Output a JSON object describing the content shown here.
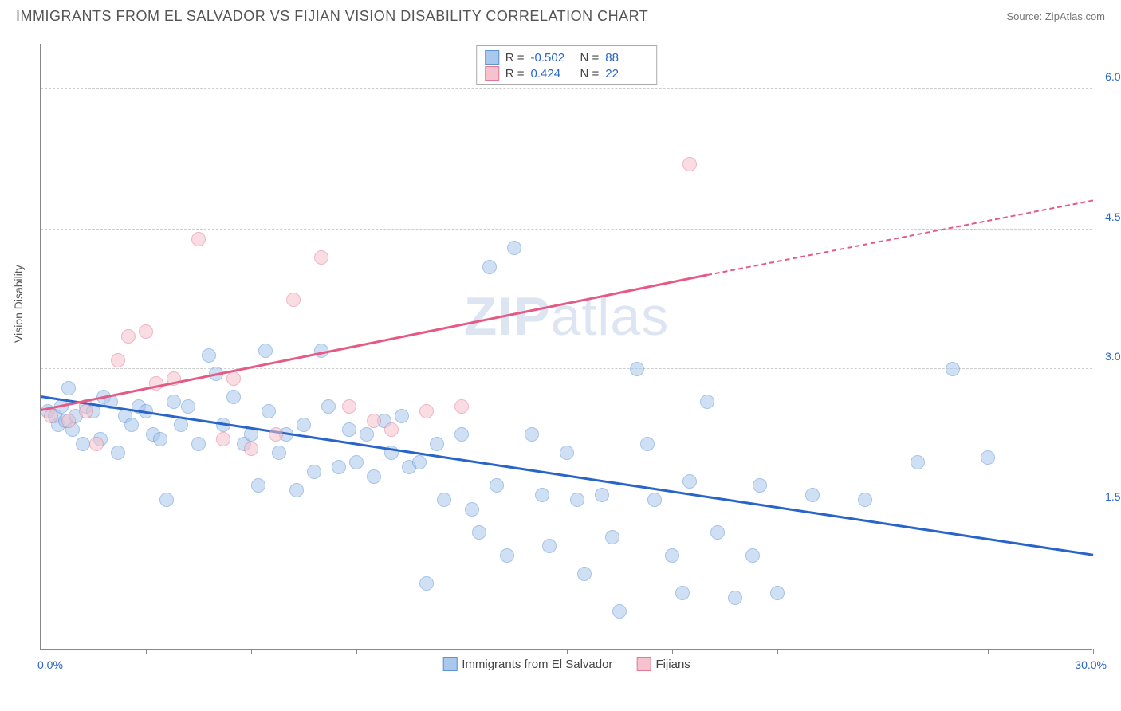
{
  "title": "IMMIGRANTS FROM EL SALVADOR VS FIJIAN VISION DISABILITY CORRELATION CHART",
  "source": "Source: ZipAtlas.com",
  "watermark_left": "ZIP",
  "watermark_right": "atlas",
  "y_axis_label": "Vision Disability",
  "chart": {
    "type": "scatter",
    "xlim": [
      0,
      30
    ],
    "ylim": [
      0,
      6.5
    ],
    "x_range_labels": {
      "min": "0.0%",
      "max": "30.0%"
    },
    "y_ticks": [
      {
        "v": 1.5,
        "label": "1.5%"
      },
      {
        "v": 3.0,
        "label": "3.0%"
      },
      {
        "v": 4.5,
        "label": "4.5%"
      },
      {
        "v": 6.0,
        "label": "6.0%"
      }
    ],
    "x_tick_positions": [
      0,
      3,
      6,
      9,
      12,
      15,
      18,
      21,
      24,
      27,
      30
    ],
    "background_color": "#ffffff",
    "grid_color": "#cccccc",
    "point_radius": 9,
    "point_opacity": 0.55,
    "series": [
      {
        "name": "Immigrants from El Salvador",
        "color_fill": "#a9c8ec",
        "color_stroke": "#5d93d4",
        "trend_color": "#2965c8",
        "trend": {
          "x1": 0,
          "y1": 2.7,
          "x2": 30,
          "y2": 1.0
        },
        "R": "-0.502",
        "N": "88",
        "points": [
          [
            0.2,
            2.55
          ],
          [
            0.4,
            2.5
          ],
          [
            0.5,
            2.4
          ],
          [
            0.6,
            2.6
          ],
          [
            0.7,
            2.45
          ],
          [
            0.8,
            2.8
          ],
          [
            0.9,
            2.35
          ],
          [
            1.0,
            2.5
          ],
          [
            1.2,
            2.2
          ],
          [
            1.3,
            2.6
          ],
          [
            1.5,
            2.55
          ],
          [
            1.7,
            2.25
          ],
          [
            1.8,
            2.7
          ],
          [
            2.0,
            2.65
          ],
          [
            2.2,
            2.1
          ],
          [
            2.4,
            2.5
          ],
          [
            2.6,
            2.4
          ],
          [
            2.8,
            2.6
          ],
          [
            3.0,
            2.55
          ],
          [
            3.2,
            2.3
          ],
          [
            3.4,
            2.25
          ],
          [
            3.6,
            1.6
          ],
          [
            3.8,
            2.65
          ],
          [
            4.0,
            2.4
          ],
          [
            4.2,
            2.6
          ],
          [
            4.5,
            2.2
          ],
          [
            4.8,
            3.15
          ],
          [
            5.0,
            2.95
          ],
          [
            5.2,
            2.4
          ],
          [
            5.5,
            2.7
          ],
          [
            5.8,
            2.2
          ],
          [
            6.0,
            2.3
          ],
          [
            6.2,
            1.75
          ],
          [
            6.5,
            2.55
          ],
          [
            6.4,
            3.2
          ],
          [
            6.8,
            2.1
          ],
          [
            7.0,
            2.3
          ],
          [
            7.3,
            1.7
          ],
          [
            7.5,
            2.4
          ],
          [
            7.8,
            1.9
          ],
          [
            8.0,
            3.2
          ],
          [
            8.2,
            2.6
          ],
          [
            8.5,
            1.95
          ],
          [
            8.8,
            2.35
          ],
          [
            9.0,
            2.0
          ],
          [
            9.3,
            2.3
          ],
          [
            9.5,
            1.85
          ],
          [
            9.8,
            2.45
          ],
          [
            10.0,
            2.1
          ],
          [
            10.3,
            2.5
          ],
          [
            10.5,
            1.95
          ],
          [
            10.8,
            2.0
          ],
          [
            11.0,
            0.7
          ],
          [
            11.3,
            2.2
          ],
          [
            11.5,
            1.6
          ],
          [
            12.0,
            2.3
          ],
          [
            12.3,
            1.5
          ],
          [
            12.5,
            1.25
          ],
          [
            12.8,
            4.1
          ],
          [
            13.0,
            1.75
          ],
          [
            13.3,
            1.0
          ],
          [
            13.5,
            4.3
          ],
          [
            14.0,
            2.3
          ],
          [
            14.3,
            1.65
          ],
          [
            14.5,
            1.1
          ],
          [
            15.0,
            2.1
          ],
          [
            15.3,
            1.6
          ],
          [
            15.5,
            0.8
          ],
          [
            16.0,
            1.65
          ],
          [
            16.3,
            1.2
          ],
          [
            16.5,
            0.4
          ],
          [
            17.0,
            3.0
          ],
          [
            17.3,
            2.2
          ],
          [
            17.5,
            1.6
          ],
          [
            18.0,
            1.0
          ],
          [
            18.3,
            0.6
          ],
          [
            18.5,
            1.8
          ],
          [
            19.0,
            2.65
          ],
          [
            19.3,
            1.25
          ],
          [
            19.8,
            0.55
          ],
          [
            20.3,
            1.0
          ],
          [
            20.5,
            1.75
          ],
          [
            21.0,
            0.6
          ],
          [
            22.0,
            1.65
          ],
          [
            23.5,
            1.6
          ],
          [
            25.0,
            2.0
          ],
          [
            26.0,
            3.0
          ],
          [
            27.0,
            2.05
          ]
        ]
      },
      {
        "name": "Fijians",
        "color_fill": "#f5c2cd",
        "color_stroke": "#e27a96",
        "trend_color": "#e55a84",
        "trend": {
          "x1": 0,
          "y1": 2.55,
          "x2": 19,
          "y2": 4.0
        },
        "trend_dash": {
          "x1": 19,
          "y1": 4.0,
          "x2": 30,
          "y2": 4.8
        },
        "R": "0.424",
        "N": "22",
        "points": [
          [
            0.3,
            2.5
          ],
          [
            0.8,
            2.45
          ],
          [
            1.3,
            2.55
          ],
          [
            1.6,
            2.2
          ],
          [
            2.2,
            3.1
          ],
          [
            2.5,
            3.35
          ],
          [
            3.0,
            3.4
          ],
          [
            3.3,
            2.85
          ],
          [
            3.8,
            2.9
          ],
          [
            4.5,
            4.4
          ],
          [
            5.2,
            2.25
          ],
          [
            5.5,
            2.9
          ],
          [
            6.0,
            2.15
          ],
          [
            6.7,
            2.3
          ],
          [
            7.2,
            3.75
          ],
          [
            8.0,
            4.2
          ],
          [
            8.8,
            2.6
          ],
          [
            9.5,
            2.45
          ],
          [
            10.0,
            2.35
          ],
          [
            11.0,
            2.55
          ],
          [
            12.0,
            2.6
          ],
          [
            18.5,
            5.2
          ]
        ]
      }
    ]
  },
  "legend": {
    "series1_label": "Immigrants from El Salvador",
    "series2_label": "Fijians"
  },
  "stats_labels": {
    "R": "R =",
    "N": "N ="
  }
}
